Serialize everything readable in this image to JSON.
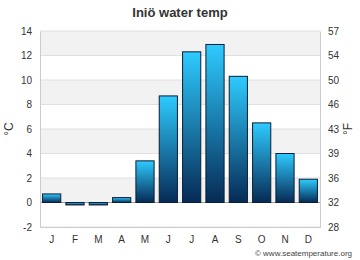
{
  "chart_data": {
    "type": "bar",
    "title": "Iniö water temp",
    "y_label": "°C",
    "y2_label": "°F",
    "categories": [
      "J",
      "F",
      "M",
      "A",
      "M",
      "J",
      "J",
      "A",
      "S",
      "O",
      "N",
      "D"
    ],
    "values": [
      0.7,
      -0.2,
      -0.2,
      0.4,
      3.4,
      8.7,
      12.3,
      12.9,
      10.3,
      6.5,
      4.0,
      1.9
    ],
    "color": "#29b6f0",
    "ylim": [
      -2,
      14
    ],
    "yticks": [
      -2,
      0,
      2,
      4,
      6,
      8,
      10,
      12,
      14
    ],
    "y2lim": [
      28.4,
      57.2
    ],
    "y2ticks": [
      {
        "value": 28.4,
        "label": "28"
      },
      32,
      {
        "value": 35.6,
        "label": "36"
      },
      {
        "value": 39.2,
        "label": "39"
      },
      {
        "value": 42.8,
        "label": "43"
      },
      {
        "value": 46.4,
        "label": "46"
      },
      50,
      {
        "value": 53.6,
        "label": "54"
      },
      {
        "value": 57.2,
        "label": "57"
      }
    ],
    "grid": true,
    "annotations": [
      "© www.seatemperature.org"
    ]
  }
}
